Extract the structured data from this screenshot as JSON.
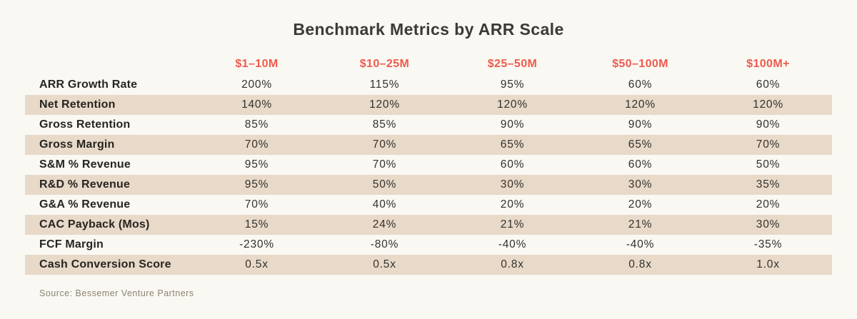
{
  "title": "Benchmark Metrics by ARR Scale",
  "source": "Source: Bessemer Venture Partners",
  "colors": {
    "background": "#faf8f2",
    "stripe": "#e8d9c8",
    "accent": "#ee5a4e",
    "title_text": "#3b3a37",
    "label_text": "#262522",
    "value_text": "#33312d",
    "source_text": "#8b8475"
  },
  "chart_data": {
    "type": "table",
    "title": "Benchmark Metrics by ARR Scale",
    "columns": [
      "$1–10M",
      "$10–25M",
      "$25–50M",
      "$50–100M",
      "$100M+"
    ],
    "rows": [
      {
        "label": "ARR Growth Rate",
        "values": [
          "200%",
          "115%",
          "95%",
          "60%",
          "60%"
        ]
      },
      {
        "label": "Net Retention",
        "values": [
          "140%",
          "120%",
          "120%",
          "120%",
          "120%"
        ]
      },
      {
        "label": "Gross Retention",
        "values": [
          "85%",
          "85%",
          "90%",
          "90%",
          "90%"
        ]
      },
      {
        "label": "Gross Margin",
        "values": [
          "70%",
          "70%",
          "65%",
          "65%",
          "70%"
        ]
      },
      {
        "label": "S&M % Revenue",
        "values": [
          "95%",
          "70%",
          "60%",
          "60%",
          "50%"
        ]
      },
      {
        "label": "R&D % Revenue",
        "values": [
          "95%",
          "50%",
          "30%",
          "30%",
          "35%"
        ]
      },
      {
        "label": "G&A % Revenue",
        "values": [
          "70%",
          "40%",
          "20%",
          "20%",
          "20%"
        ]
      },
      {
        "label": "CAC Payback (Mos)",
        "values": [
          "15%",
          "24%",
          "21%",
          "21%",
          "30%"
        ]
      },
      {
        "label": "FCF Margin",
        "values": [
          "-230%",
          "-80%",
          "-40%",
          "-40%",
          "-35%"
        ]
      },
      {
        "label": "Cash Conversion Score",
        "values": [
          "0.5x",
          "0.5x",
          "0.8x",
          "0.8x",
          "1.0x"
        ]
      }
    ],
    "source": "Source: Bessemer Venture Partners",
    "layout": {
      "stripe_rows": "even rows shaded",
      "header_color": "coral",
      "grid": "off"
    }
  }
}
